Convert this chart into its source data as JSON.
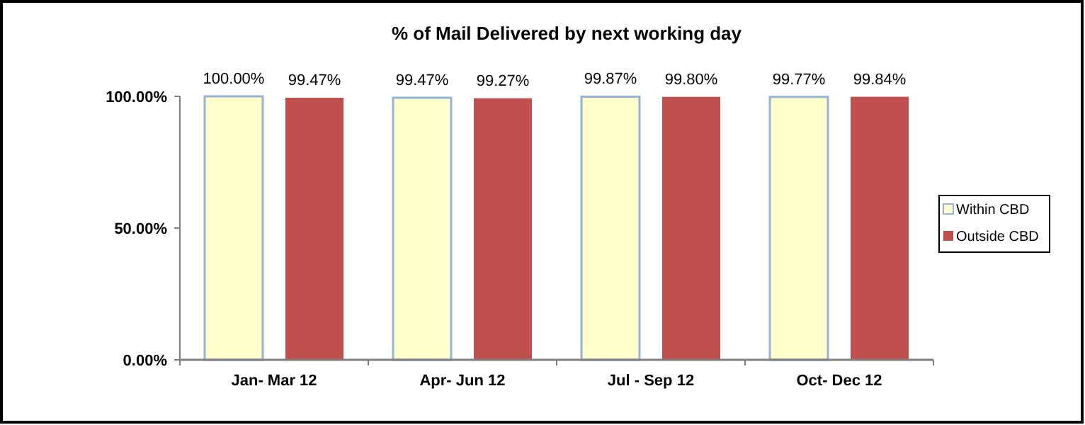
{
  "chart_data": {
    "type": "bar",
    "title": "% of Mail Delivered by next working day",
    "categories": [
      "Jan- Mar 12",
      "Apr- Jun 12",
      "Jul - Sep 12",
      "Oct- Dec 12"
    ],
    "series": [
      {
        "name": "Within CBD",
        "color": "#ffffcc",
        "values": [
          100.0,
          99.47,
          99.87,
          99.77
        ],
        "value_labels": [
          "100.00%",
          "99.47%",
          "99.87%",
          "99.77%"
        ]
      },
      {
        "name": "Outside CBD",
        "color": "#c0504d",
        "values": [
          99.47,
          99.27,
          99.8,
          99.84
        ],
        "value_labels": [
          "99.47%",
          "99.27%",
          "99.80%",
          "99.84%"
        ]
      }
    ],
    "ylim": [
      0,
      100
    ],
    "yticks": [
      {
        "value": 0,
        "label": "0.00%"
      },
      {
        "value": 50,
        "label": "50.00%"
      },
      {
        "value": 100,
        "label": "100.00%"
      }
    ],
    "grid": false,
    "legend": "right"
  }
}
